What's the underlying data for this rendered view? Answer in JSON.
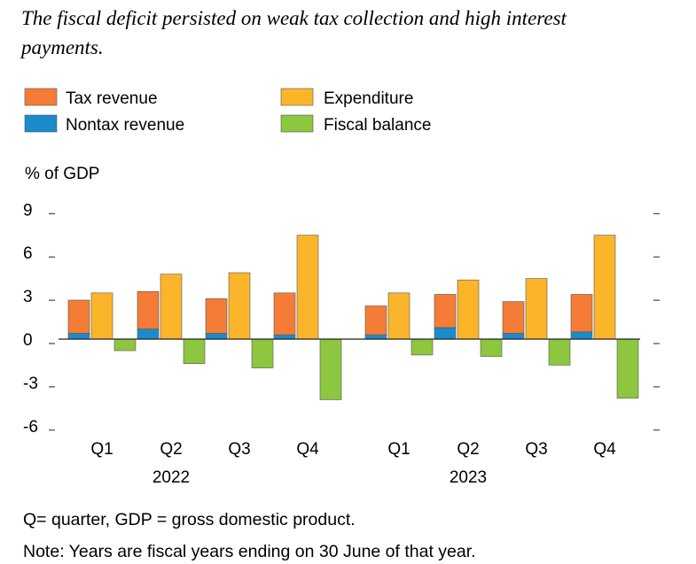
{
  "chart_data": {
    "type": "bar",
    "title_lines": [
      "The fiscal deficit persisted on weak tax collection and high interest",
      "payments."
    ],
    "ylabel": "% of GDP",
    "ylim": [
      -6,
      9
    ],
    "yticks": [
      "9",
      "6",
      "3",
      "0",
      "-3",
      "-6"
    ],
    "ytick_values": [
      9,
      6,
      3,
      0,
      -3,
      -6
    ],
    "categories": [
      "Q1",
      "Q2",
      "Q3",
      "Q4",
      "Q1",
      "Q2",
      "Q3",
      "Q4"
    ],
    "groups": [
      {
        "label": "2022",
        "span": [
          0,
          3
        ]
      },
      {
        "label": "2023",
        "span": [
          4,
          7
        ]
      }
    ],
    "legend": {
      "tax": "Tax revenue",
      "nontax": "Nontax revenue",
      "expenditure": "Expenditure",
      "balance": "Fiscal balance"
    },
    "series": [
      {
        "key": "nontax",
        "name": "Nontax revenue",
        "stack": "revenue",
        "values": [
          0.4,
          0.7,
          0.4,
          0.3,
          0.3,
          0.8,
          0.4,
          0.5
        ]
      },
      {
        "key": "tax",
        "name": "Tax revenue",
        "stack": "revenue",
        "values": [
          2.3,
          2.6,
          2.4,
          2.9,
          2.0,
          2.3,
          2.2,
          2.6
        ]
      },
      {
        "key": "expenditure",
        "name": "Expenditure",
        "values": [
          3.2,
          4.5,
          4.6,
          7.2,
          3.2,
          4.1,
          4.2,
          7.2
        ]
      },
      {
        "key": "balance",
        "name": "Fiscal balance",
        "values": [
          -0.8,
          -1.7,
          -2.0,
          -4.2,
          -1.1,
          -1.2,
          -1.8,
          -4.1
        ]
      }
    ],
    "grid": false,
    "legend_position": "top"
  },
  "colors": {
    "tax": "#f47c36",
    "nontax": "#1a8ccc",
    "expenditure": "#fbb52a",
    "balance": "#8dc63f",
    "border": "#555555",
    "text": "#231f20"
  },
  "notes": [
    "Q= quarter, GDP = gross domestic product.",
    "Note: Years are fiscal years ending on 30 June of that year."
  ]
}
